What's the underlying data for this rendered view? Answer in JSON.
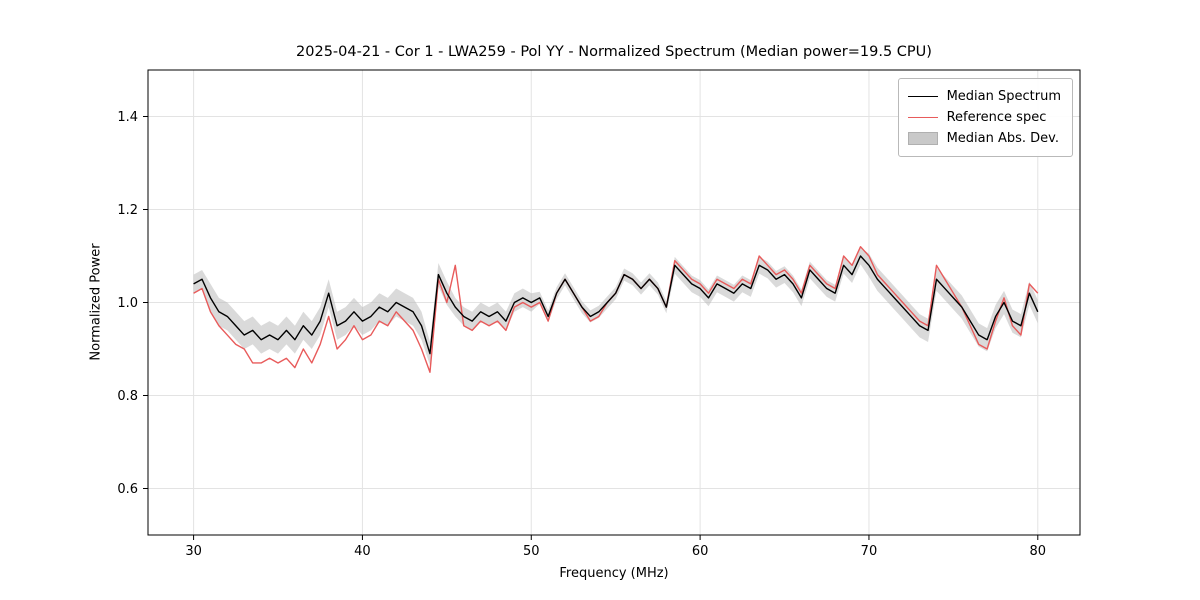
{
  "figure": {
    "title": "2025-04-21 - Cor 1 - LWA259 - Pol YY - Normalized Spectrum (Median power=19.5 CPU)",
    "xlabel": "Frequency (MHz)",
    "ylabel": "Normalized Power"
  },
  "legend": {
    "items": [
      {
        "label": "Median Spectrum",
        "type": "line",
        "color": "#000000"
      },
      {
        "label": "Reference spec",
        "type": "line",
        "color": "#e85b5b"
      },
      {
        "label": "Median Abs. Dev.",
        "type": "patch",
        "color": "#c9c9c9"
      }
    ]
  },
  "chart_data": {
    "type": "line",
    "title": "2025-04-21 - Cor 1 - LWA259 - Pol YY - Normalized Spectrum (Median power=19.5 CPU)",
    "xlabel": "Frequency (MHz)",
    "ylabel": "Normalized Power",
    "xlim": [
      27.3,
      82.5
    ],
    "ylim": [
      0.5,
      1.5
    ],
    "x_ticks": [
      30,
      40,
      50,
      60,
      70,
      80
    ],
    "y_ticks": [
      0.6,
      0.8,
      1.0,
      1.2,
      1.4
    ],
    "grid": true,
    "grid_color": "#e3e3e3",
    "legend_position": "upper right",
    "x": [
      30,
      30.5,
      31,
      31.5,
      32,
      32.5,
      33,
      33.5,
      34,
      34.5,
      35,
      35.5,
      36,
      36.5,
      37,
      37.5,
      38,
      38.5,
      39,
      39.5,
      40,
      40.5,
      41,
      41.5,
      42,
      42.5,
      43,
      43.5,
      44,
      44.5,
      45,
      45.5,
      46,
      46.5,
      47,
      47.5,
      48,
      48.5,
      49,
      49.5,
      50,
      50.5,
      51,
      51.5,
      52,
      52.5,
      53,
      53.5,
      54,
      54.5,
      55,
      55.5,
      56,
      56.5,
      57,
      57.5,
      58,
      58.5,
      59,
      59.5,
      60,
      60.5,
      61,
      61.5,
      62,
      62.5,
      63,
      63.5,
      64,
      64.5,
      65,
      65.5,
      66,
      66.5,
      67,
      67.5,
      68,
      68.5,
      69,
      69.5,
      70,
      70.5,
      71,
      71.5,
      72,
      72.5,
      73,
      73.5,
      74,
      74.5,
      75,
      75.5,
      76,
      76.5,
      77,
      77.5,
      78,
      78.5,
      79,
      79.5,
      80
    ],
    "series": [
      {
        "name": "Median Spectrum",
        "color": "#000000",
        "values": [
          1.04,
          1.05,
          1.01,
          0.98,
          0.97,
          0.95,
          0.93,
          0.94,
          0.92,
          0.93,
          0.92,
          0.94,
          0.92,
          0.95,
          0.93,
          0.96,
          1.02,
          0.95,
          0.96,
          0.98,
          0.96,
          0.97,
          0.99,
          0.98,
          1.0,
          0.99,
          0.98,
          0.95,
          0.89,
          1.06,
          1.02,
          0.99,
          0.97,
          0.96,
          0.98,
          0.97,
          0.98,
          0.96,
          1.0,
          1.01,
          1.0,
          1.01,
          0.97,
          1.02,
          1.05,
          1.02,
          0.99,
          0.97,
          0.98,
          1.0,
          1.02,
          1.06,
          1.05,
          1.03,
          1.05,
          1.03,
          0.99,
          1.08,
          1.06,
          1.04,
          1.03,
          1.01,
          1.04,
          1.03,
          1.02,
          1.04,
          1.03,
          1.08,
          1.07,
          1.05,
          1.06,
          1.04,
          1.01,
          1.07,
          1.05,
          1.03,
          1.02,
          1.08,
          1.06,
          1.1,
          1.08,
          1.05,
          1.03,
          1.01,
          0.99,
          0.97,
          0.95,
          0.94,
          1.05,
          1.03,
          1.01,
          0.99,
          0.96,
          0.93,
          0.92,
          0.97,
          1.0,
          0.96,
          0.95,
          1.02,
          0.98
        ]
      },
      {
        "name": "Reference spec",
        "color": "#e85b5b",
        "values": [
          1.02,
          1.03,
          0.98,
          0.95,
          0.93,
          0.91,
          0.9,
          0.87,
          0.87,
          0.88,
          0.87,
          0.88,
          0.86,
          0.9,
          0.87,
          0.91,
          0.97,
          0.9,
          0.92,
          0.95,
          0.92,
          0.93,
          0.96,
          0.95,
          0.98,
          0.96,
          0.94,
          0.9,
          0.85,
          1.05,
          1.0,
          1.08,
          0.95,
          0.94,
          0.96,
          0.95,
          0.96,
          0.94,
          0.99,
          1.0,
          0.99,
          1.0,
          0.96,
          1.02,
          1.05,
          1.02,
          0.99,
          0.96,
          0.97,
          1.0,
          1.02,
          1.06,
          1.05,
          1.03,
          1.05,
          1.03,
          0.99,
          1.09,
          1.07,
          1.05,
          1.04,
          1.02,
          1.05,
          1.04,
          1.03,
          1.05,
          1.04,
          1.1,
          1.08,
          1.06,
          1.07,
          1.05,
          1.02,
          1.08,
          1.06,
          1.04,
          1.03,
          1.1,
          1.08,
          1.12,
          1.1,
          1.06,
          1.04,
          1.02,
          1.0,
          0.98,
          0.96,
          0.95,
          1.08,
          1.05,
          1.02,
          0.99,
          0.95,
          0.91,
          0.9,
          0.96,
          1.01,
          0.95,
          0.93,
          1.04,
          1.02
        ]
      }
    ],
    "band": {
      "name": "Median Abs. Dev.",
      "center_series": "Median Spectrum",
      "color": "#bbbbbb",
      "opacity": 0.55,
      "half_width": [
        0.02,
        0.02,
        0.03,
        0.03,
        0.03,
        0.03,
        0.03,
        0.03,
        0.03,
        0.03,
        0.03,
        0.03,
        0.03,
        0.03,
        0.03,
        0.03,
        0.03,
        0.03,
        0.03,
        0.03,
        0.03,
        0.03,
        0.03,
        0.03,
        0.03,
        0.03,
        0.03,
        0.03,
        0.025,
        0.025,
        0.025,
        0.02,
        0.02,
        0.02,
        0.02,
        0.02,
        0.02,
        0.02,
        0.02,
        0.02,
        0.02,
        0.013,
        0.013,
        0.013,
        0.013,
        0.013,
        0.013,
        0.013,
        0.013,
        0.013,
        0.013,
        0.013,
        0.013,
        0.013,
        0.013,
        0.013,
        0.013,
        0.018,
        0.018,
        0.018,
        0.018,
        0.018,
        0.018,
        0.018,
        0.018,
        0.018,
        0.018,
        0.018,
        0.018,
        0.018,
        0.018,
        0.018,
        0.018,
        0.018,
        0.018,
        0.018,
        0.018,
        0.018,
        0.018,
        0.018,
        0.025,
        0.025,
        0.025,
        0.025,
        0.025,
        0.025,
        0.025,
        0.025,
        0.025,
        0.025,
        0.025,
        0.025,
        0.025,
        0.025,
        0.025,
        0.025,
        0.025,
        0.025,
        0.025,
        0.025,
        0.025
      ]
    }
  }
}
